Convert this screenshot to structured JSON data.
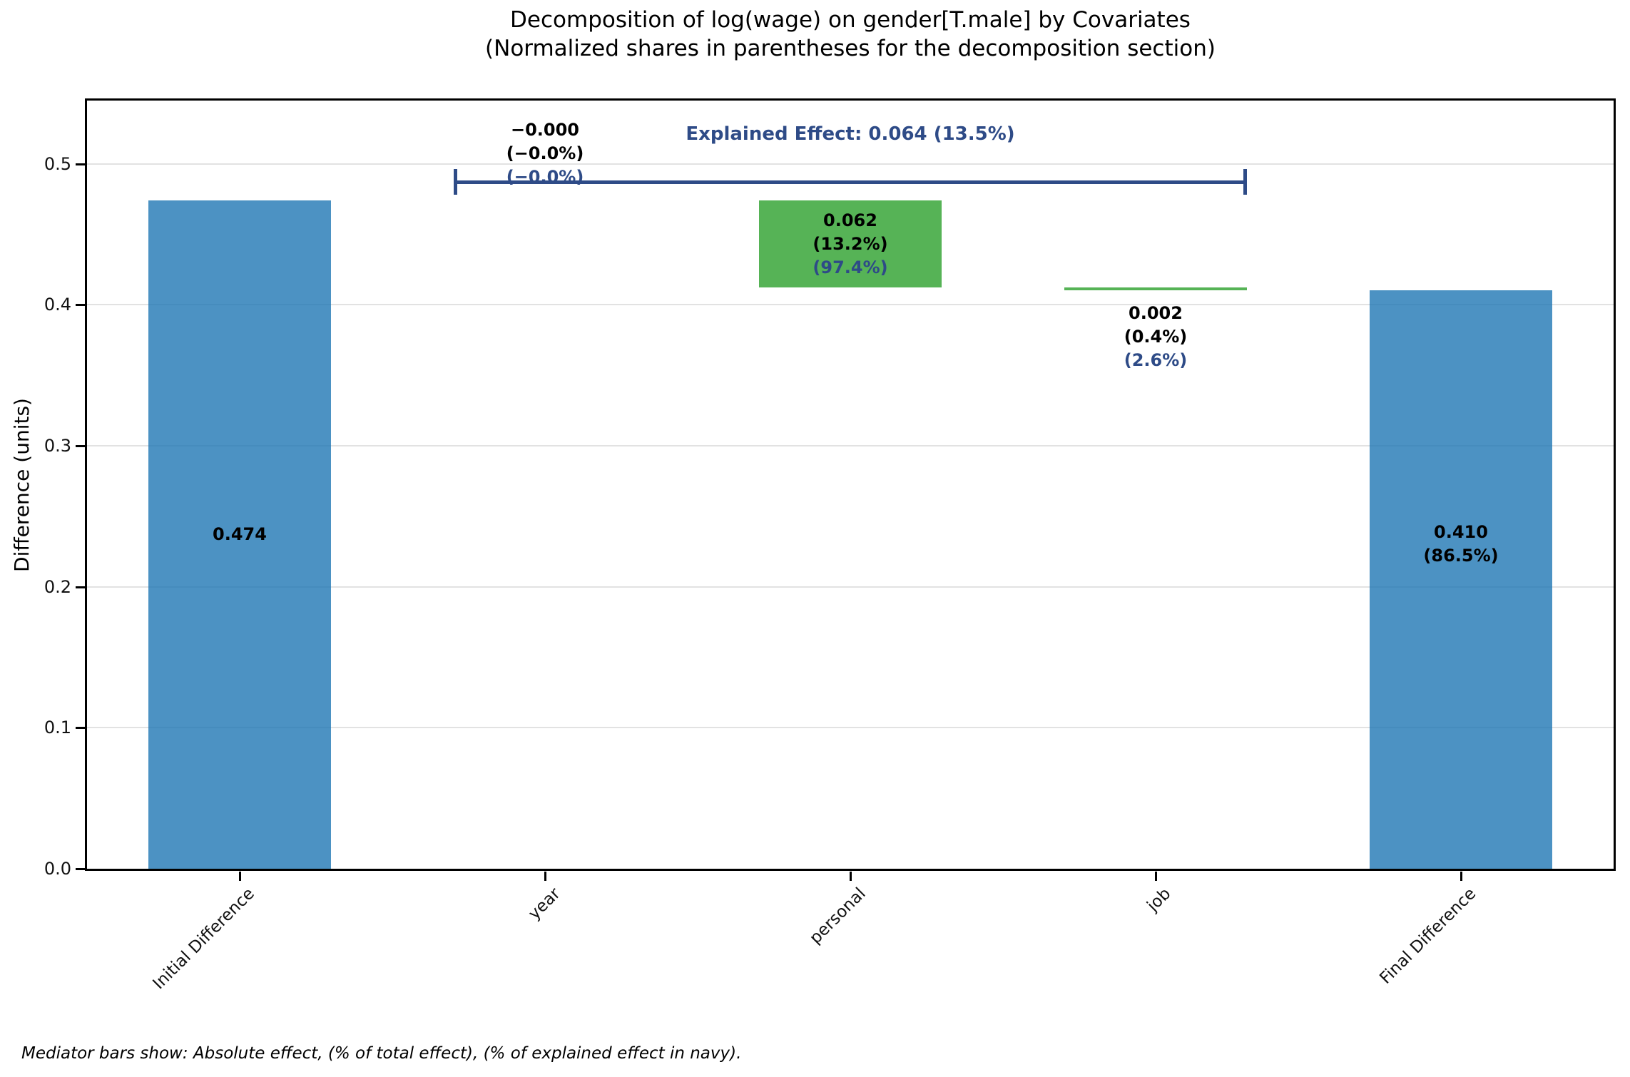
{
  "chart_data": {
    "type": "bar",
    "title": "Decomposition of log(wage) on gender[T.male] by Covariates",
    "subtitle": "(Normalized shares in parentheses for the decomposition section)",
    "ylabel": "Difference (units)",
    "ylim": [
      0,
      0.5447
    ],
    "yticks": [
      0,
      0.1,
      0.2,
      0.3,
      0.4,
      0.5
    ],
    "grid": "horizontal",
    "legend": "none",
    "categories": [
      "Initial Difference",
      "year",
      "personal",
      "job",
      "Final Difference"
    ],
    "values": [
      0.474,
      -0.0,
      0.062,
      0.002,
      0.41
    ],
    "bars": [
      {
        "category": "Initial Difference",
        "kind": "total",
        "base": 0.0,
        "top": 0.474,
        "value": 0.474,
        "label_pos": "inside",
        "label_v": 0.237,
        "label_lines": [
          {
            "text": "0.474",
            "navy": false
          }
        ]
      },
      {
        "category": "year",
        "kind": "mediator",
        "base": 0.474,
        "top": 0.474,
        "value": -0.0,
        "label_pos": "above",
        "label_lines": [
          {
            "text": "−0.000",
            "navy": false
          },
          {
            "text": "(−0.0%)",
            "navy": false
          },
          {
            "text": "(−0.0%)",
            "navy": true
          }
        ]
      },
      {
        "category": "personal",
        "kind": "mediator",
        "base": 0.412,
        "top": 0.474,
        "value": 0.062,
        "label_pos": "inside",
        "label_lines": [
          {
            "text": "0.062",
            "navy": false
          },
          {
            "text": "(13.2%)",
            "navy": false
          },
          {
            "text": "(97.4%)",
            "navy": true
          }
        ]
      },
      {
        "category": "job",
        "kind": "mediator",
        "base": 0.41,
        "top": 0.412,
        "value": 0.002,
        "label_pos": "below",
        "label_lines": [
          {
            "text": "0.002",
            "navy": false
          },
          {
            "text": "(0.4%)",
            "navy": false
          },
          {
            "text": "(2.6%)",
            "navy": true
          }
        ]
      },
      {
        "category": "Final Difference",
        "kind": "total",
        "base": 0.0,
        "top": 0.41,
        "value": 0.41,
        "label_pos": "inside",
        "label_v": 0.23,
        "label_lines": [
          {
            "text": "0.410",
            "navy": false
          },
          {
            "text": "(86.5%)",
            "navy": false
          }
        ]
      }
    ],
    "explained_bracket": {
      "label": "Explained Effect: 0.064 (13.5%)",
      "from_category": 1,
      "to_category": 3,
      "y": 0.487
    },
    "footnote": "Mediator bars show: Absolute effect, (% of total effect), (% of explained effect in navy).",
    "colors": {
      "total_bar": "rgba(31,119,180,0.8)",
      "mediator_bar": "rgba(44,160,44,0.8)",
      "navy": "#2e4b87",
      "grid": "#e2e2e2",
      "spine": "#000000"
    }
  }
}
